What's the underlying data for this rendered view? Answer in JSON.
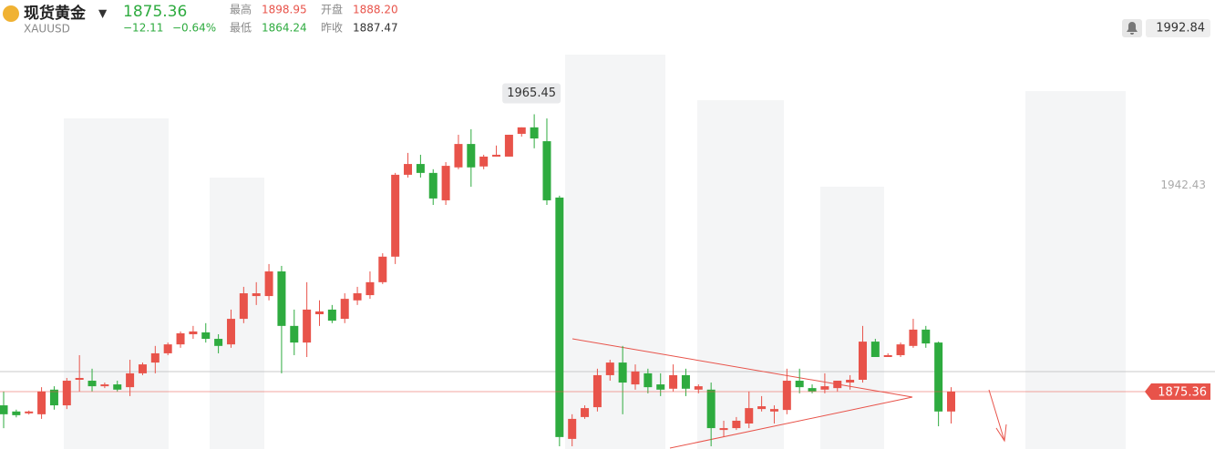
{
  "header": {
    "name": "现货黄金",
    "symbol": "XAUUSD",
    "price": "1875.36",
    "change": "−12.11",
    "change_pct": "−0.64%",
    "stats": [
      {
        "label": "最高",
        "value": "1898.95"
      },
      {
        "label": "开盘",
        "value": "1888.20"
      },
      {
        "label": "最低",
        "value": "1864.24"
      },
      {
        "label": "昨收",
        "value": "1887.47"
      }
    ]
  },
  "chart_data": {
    "type": "candlestick",
    "up_color": "#e8534a",
    "down_color": "#2eab3f",
    "ylim": [
      1855,
      1995
    ],
    "yticks": [
      1942.43
    ],
    "alert_price": 1992.84,
    "last_price": 1875.36,
    "high_marker": 42,
    "ohlc": [
      [
        1870.9,
        1875.4,
        1863.5,
        1868.0
      ],
      [
        1868.9,
        1869.5,
        1867.0,
        1867.7
      ],
      [
        1868.3,
        1869.2,
        1867.9,
        1868.9
      ],
      [
        1868.0,
        1876.8,
        1866.5,
        1875.4
      ],
      [
        1876.0,
        1877.1,
        1869.5,
        1870.9
      ],
      [
        1870.9,
        1879.8,
        1869.7,
        1878.9
      ],
      [
        1879.2,
        1887.2,
        1875.4,
        1879.8
      ],
      [
        1878.9,
        1882.8,
        1875.4,
        1877.1
      ],
      [
        1877.1,
        1878.3,
        1876.5,
        1877.7
      ],
      [
        1877.7,
        1878.9,
        1875.4,
        1876.0
      ],
      [
        1876.8,
        1885.7,
        1873.9,
        1881.3
      ],
      [
        1881.3,
        1884.8,
        1880.7,
        1884.2
      ],
      [
        1884.8,
        1890.2,
        1881.3,
        1887.8
      ],
      [
        1887.8,
        1891.3,
        1887.2,
        1890.7
      ],
      [
        1890.7,
        1894.9,
        1889.6,
        1894.3
      ],
      [
        1894.0,
        1896.7,
        1892.5,
        1894.9
      ],
      [
        1894.6,
        1897.6,
        1891.3,
        1892.5
      ],
      [
        1892.5,
        1894.0,
        1887.8,
        1890.2
      ],
      [
        1890.7,
        1902.0,
        1889.6,
        1899.0
      ],
      [
        1899.0,
        1909.4,
        1897.6,
        1907.3
      ],
      [
        1906.4,
        1910.9,
        1903.5,
        1907.3
      ],
      [
        1906.4,
        1916.8,
        1905.0,
        1914.4
      ],
      [
        1914.4,
        1916.2,
        1881.3,
        1896.7
      ],
      [
        1896.7,
        1902.0,
        1887.2,
        1891.3
      ],
      [
        1891.3,
        1910.9,
        1886.6,
        1902.0
      ],
      [
        1900.5,
        1905.0,
        1896.7,
        1901.4
      ],
      [
        1902.0,
        1903.5,
        1897.6,
        1898.4
      ],
      [
        1899.0,
        1907.3,
        1897.6,
        1905.5
      ],
      [
        1905.0,
        1909.4,
        1903.5,
        1907.3
      ],
      [
        1906.7,
        1914.4,
        1905.5,
        1910.9
      ],
      [
        1910.9,
        1920.3,
        1910.3,
        1919.2
      ],
      [
        1919.2,
        1946.4,
        1916.8,
        1945.8
      ],
      [
        1945.8,
        1952.9,
        1944.9,
        1949.3
      ],
      [
        1949.3,
        1952.3,
        1944.9,
        1946.4
      ],
      [
        1946.4,
        1947.6,
        1936.0,
        1938.1
      ],
      [
        1937.5,
        1949.9,
        1936.0,
        1948.7
      ],
      [
        1948.2,
        1958.8,
        1947.6,
        1955.8
      ],
      [
        1955.8,
        1960.6,
        1941.9,
        1948.2
      ],
      [
        1948.5,
        1952.3,
        1947.6,
        1951.7
      ],
      [
        1951.7,
        1955.3,
        1951.7,
        1952.3
      ],
      [
        1951.7,
        1958.8,
        1951.7,
        1958.8
      ],
      [
        1959.1,
        1961.2,
        1958.2,
        1961.2
      ],
      [
        1961.2,
        1965.45,
        1954.4,
        1957.6
      ],
      [
        1956.7,
        1964.1,
        1936.0,
        1937.5
      ],
      [
        1938.4,
        1939.0,
        1857.6,
        1860.6
      ],
      [
        1860.0,
        1868.0,
        1857.6,
        1866.5
      ],
      [
        1867.1,
        1870.9,
        1866.5,
        1870.0
      ],
      [
        1870.3,
        1882.8,
        1868.9,
        1880.7
      ],
      [
        1880.7,
        1885.7,
        1878.9,
        1884.8
      ],
      [
        1884.8,
        1890.2,
        1868.0,
        1878.3
      ],
      [
        1877.7,
        1884.2,
        1876.0,
        1881.9
      ],
      [
        1881.3,
        1882.8,
        1874.8,
        1876.8
      ],
      [
        1877.7,
        1881.3,
        1873.9,
        1876.0
      ],
      [
        1876.3,
        1884.2,
        1875.4,
        1880.7
      ],
      [
        1880.7,
        1882.8,
        1873.9,
        1876.3
      ],
      [
        1876.0,
        1877.7,
        1874.8,
        1877.1
      ],
      [
        1876.0,
        1878.3,
        1857.6,
        1863.5
      ],
      [
        1862.9,
        1865.9,
        1860.6,
        1863.5
      ],
      [
        1863.5,
        1867.1,
        1862.9,
        1865.9
      ],
      [
        1865.0,
        1875.4,
        1863.5,
        1870.0
      ],
      [
        1869.7,
        1873.9,
        1868.9,
        1870.6
      ],
      [
        1868.9,
        1870.9,
        1865.0,
        1869.7
      ],
      [
        1869.4,
        1882.8,
        1868.0,
        1878.9
      ],
      [
        1878.9,
        1882.8,
        1874.8,
        1876.8
      ],
      [
        1876.5,
        1877.7,
        1874.8,
        1875.4
      ],
      [
        1876.0,
        1881.3,
        1874.8,
        1877.1
      ],
      [
        1876.5,
        1878.9,
        1875.4,
        1878.9
      ],
      [
        1878.3,
        1880.7,
        1876.0,
        1879.2
      ],
      [
        1879.2,
        1896.7,
        1878.3,
        1891.6
      ],
      [
        1891.6,
        1892.5,
        1886.6,
        1886.6
      ],
      [
        1886.6,
        1887.8,
        1886.6,
        1887.2
      ],
      [
        1887.2,
        1891.3,
        1886.6,
        1890.7
      ],
      [
        1890.2,
        1899.0,
        1889.6,
        1895.5
      ],
      [
        1895.5,
        1896.7,
        1889.6,
        1891.0
      ],
      [
        1891.3,
        1891.6,
        1864.1,
        1868.9
      ],
      [
        1868.9,
        1876.8,
        1865.0,
        1875.36
      ]
    ]
  }
}
